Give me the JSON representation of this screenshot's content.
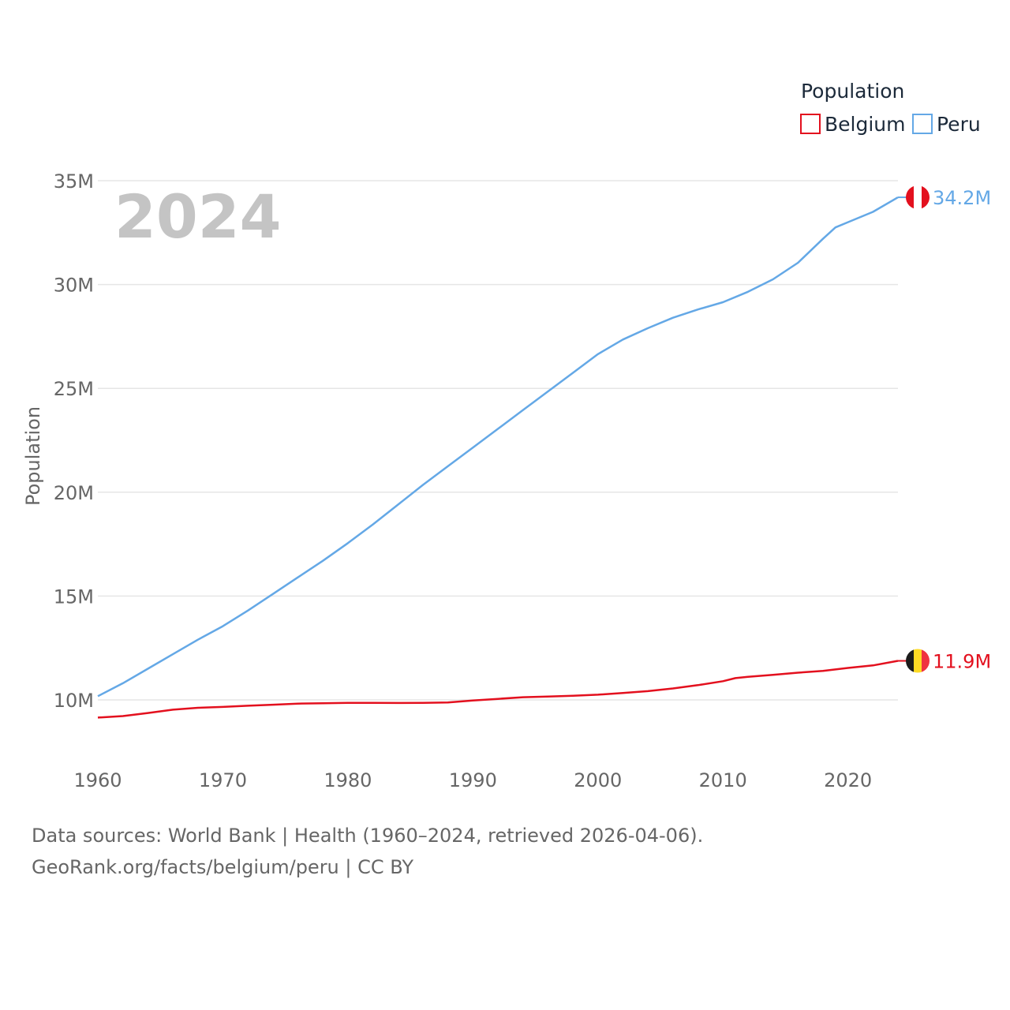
{
  "chart_data": {
    "type": "line",
    "ylabel": "Population",
    "xlabel": "",
    "year_label": "2024",
    "xlim": [
      1960,
      2024
    ],
    "ylim": [
      10000000,
      35000000
    ],
    "x_ticks": [
      1960,
      1970,
      1980,
      1990,
      2000,
      2010,
      2020
    ],
    "x_tick_labels": [
      "1960",
      "1970",
      "1980",
      "1990",
      "2000",
      "2010",
      "2020"
    ],
    "y_ticks": [
      10000000,
      15000000,
      20000000,
      25000000,
      30000000,
      35000000
    ],
    "y_tick_labels": [
      "10M",
      "15M",
      "20M",
      "25M",
      "30M",
      "35M"
    ],
    "legend_title": "Population",
    "legend_position": "top-right",
    "series": [
      {
        "name": "Belgium",
        "color": "#e3101e",
        "end_label": "11.9M",
        "flag": "belgium-flag",
        "x": [
          1960,
          1962,
          1964,
          1966,
          1968,
          1970,
          1972,
          1974,
          1976,
          1978,
          1980,
          1982,
          1984,
          1986,
          1988,
          1990,
          1992,
          1994,
          1996,
          1998,
          2000,
          2002,
          2004,
          2006,
          2008,
          2010,
          2011,
          2012,
          2014,
          2016,
          2018,
          2020,
          2022,
          2024
        ],
        "values": [
          9150000,
          9220000,
          9370000,
          9530000,
          9620000,
          9660000,
          9720000,
          9770000,
          9820000,
          9840000,
          9860000,
          9860000,
          9850000,
          9860000,
          9880000,
          9970000,
          10050000,
          10130000,
          10160000,
          10200000,
          10250000,
          10330000,
          10420000,
          10550000,
          10710000,
          10900000,
          11050000,
          11110000,
          11210000,
          11310000,
          11400000,
          11540000,
          11660000,
          11880000
        ]
      },
      {
        "name": "Peru",
        "color": "#64a8e6",
        "end_label": "34.2M",
        "flag": "peru-flag",
        "x": [
          1960,
          1962,
          1964,
          1966,
          1968,
          1970,
          1972,
          1974,
          1976,
          1978,
          1980,
          1982,
          1984,
          1986,
          1988,
          1990,
          1992,
          1994,
          1996,
          1998,
          2000,
          2002,
          2004,
          2006,
          2008,
          2010,
          2012,
          2014,
          2016,
          2018,
          2019,
          2020,
          2022,
          2024
        ],
        "values": [
          10180000,
          10800000,
          11500000,
          12200000,
          12900000,
          13550000,
          14300000,
          15100000,
          15900000,
          16700000,
          17550000,
          18450000,
          19400000,
          20350000,
          21250000,
          22150000,
          23050000,
          23950000,
          24850000,
          25750000,
          26650000,
          27350000,
          27900000,
          28400000,
          28800000,
          29150000,
          29650000,
          30250000,
          31050000,
          32200000,
          32750000,
          33000000,
          33500000,
          34200000
        ]
      }
    ]
  },
  "footer": {
    "line1": "Data sources: World Bank | Health (1960–2024, retrieved 2026-04-06).",
    "line2": "GeoRank.org/facts/belgium/peru | CC BY"
  }
}
